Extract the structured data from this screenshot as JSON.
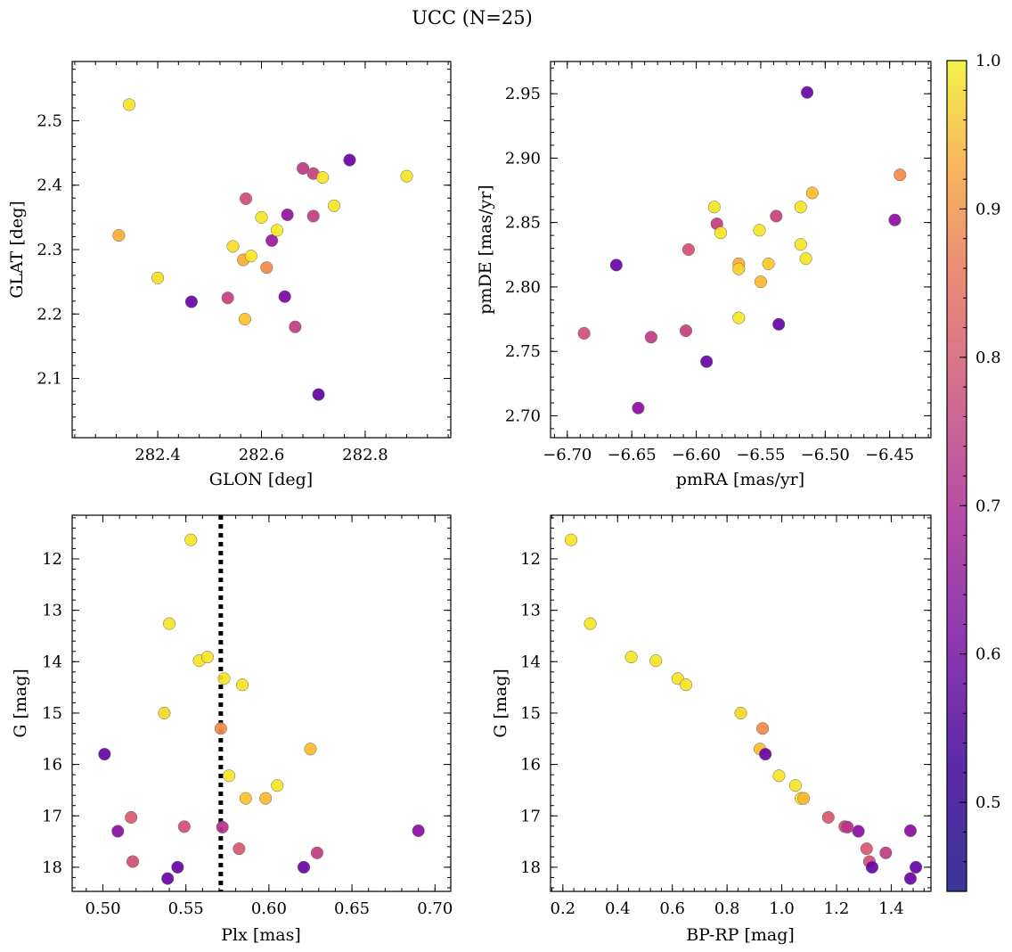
{
  "figure": {
    "title": "UCC (N=25)"
  },
  "colorbar": {
    "ticks": [
      0.5,
      0.6,
      0.7,
      0.8,
      0.9,
      1.0
    ],
    "tick_labels": [
      "0.5",
      "0.6",
      "0.7",
      "0.8",
      "0.9",
      "1.0"
    ],
    "range": [
      0.44,
      1.0
    ],
    "colormap": "plasma"
  },
  "chart_data": [
    {
      "id": "glon-glat",
      "type": "scatter",
      "xlabel": "GLON [deg]",
      "ylabel": "GLAT [deg]",
      "xlim": [
        282.235,
        282.965
      ],
      "ylim": [
        2.008,
        2.592
      ],
      "xticks": [
        282.4,
        282.6,
        282.8
      ],
      "xtick_labels": [
        "282.4",
        "282.6",
        "282.8"
      ],
      "yticks": [
        2.1,
        2.2,
        2.3,
        2.4,
        2.5
      ],
      "ytick_labels": [
        "2.1",
        "2.2",
        "2.3",
        "2.4",
        "2.5"
      ],
      "x_minor_step": 0.04,
      "y_minor_step": 0.02,
      "invert_y": false,
      "points": [
        {
          "x": 282.345,
          "y": 2.525,
          "c": 0.97
        },
        {
          "x": 282.325,
          "y": 2.322,
          "c": 0.88
        },
        {
          "x": 282.4,
          "y": 2.256,
          "c": 0.96
        },
        {
          "x": 282.465,
          "y": 2.219,
          "c": 0.49
        },
        {
          "x": 282.535,
          "y": 2.225,
          "c": 0.67
        },
        {
          "x": 282.545,
          "y": 2.305,
          "c": 0.96
        },
        {
          "x": 282.565,
          "y": 2.284,
          "c": 0.88
        },
        {
          "x": 282.568,
          "y": 2.192,
          "c": 0.92
        },
        {
          "x": 282.57,
          "y": 2.379,
          "c": 0.7
        },
        {
          "x": 282.58,
          "y": 2.29,
          "c": 0.97
        },
        {
          "x": 282.6,
          "y": 2.35,
          "c": 0.97
        },
        {
          "x": 282.61,
          "y": 2.272,
          "c": 0.82
        },
        {
          "x": 282.62,
          "y": 2.314,
          "c": 0.58
        },
        {
          "x": 282.63,
          "y": 2.33,
          "c": 0.98
        },
        {
          "x": 282.645,
          "y": 2.227,
          "c": 0.52
        },
        {
          "x": 282.65,
          "y": 2.354,
          "c": 0.56
        },
        {
          "x": 282.665,
          "y": 2.18,
          "c": 0.66
        },
        {
          "x": 282.68,
          "y": 2.426,
          "c": 0.65
        },
        {
          "x": 282.7,
          "y": 2.418,
          "c": 0.67
        },
        {
          "x": 282.7,
          "y": 2.352,
          "c": 0.66
        },
        {
          "x": 282.71,
          "y": 2.075,
          "c": 0.48
        },
        {
          "x": 282.718,
          "y": 2.412,
          "c": 0.97
        },
        {
          "x": 282.74,
          "y": 2.368,
          "c": 0.97
        },
        {
          "x": 282.77,
          "y": 2.439,
          "c": 0.49
        },
        {
          "x": 282.88,
          "y": 2.414,
          "c": 0.97
        }
      ]
    },
    {
      "id": "pmra-pmde",
      "type": "scatter",
      "xlabel": "pmRA [mas/yr]",
      "ylabel": "pmDE [mas/yr]",
      "xlim": [
        -6.713,
        -6.418
      ],
      "ylim": [
        2.683,
        2.975
      ],
      "xticks": [
        -6.7,
        -6.65,
        -6.6,
        -6.55,
        -6.5,
        -6.45
      ],
      "xtick_labels": [
        "−6.70",
        "−6.65",
        "−6.60",
        "−6.55",
        "−6.50",
        "−6.45"
      ],
      "yticks": [
        2.7,
        2.75,
        2.8,
        2.85,
        2.9,
        2.95
      ],
      "ytick_labels": [
        "2.70",
        "2.75",
        "2.80",
        "2.85",
        "2.90",
        "2.95"
      ],
      "x_minor_step": 0.01,
      "y_minor_step": 0.01,
      "invert_y": false,
      "points": [
        {
          "x": -6.514,
          "y": 2.951,
          "c": 0.49
        },
        {
          "x": -6.442,
          "y": 2.887,
          "c": 0.82
        },
        {
          "x": -6.51,
          "y": 2.873,
          "c": 0.91
        },
        {
          "x": -6.586,
          "y": 2.862,
          "c": 0.97
        },
        {
          "x": -6.519,
          "y": 2.862,
          "c": 0.97
        },
        {
          "x": -6.538,
          "y": 2.855,
          "c": 0.67
        },
        {
          "x": -6.446,
          "y": 2.852,
          "c": 0.55
        },
        {
          "x": -6.584,
          "y": 2.849,
          "c": 0.66
        },
        {
          "x": -6.581,
          "y": 2.842,
          "c": 0.97
        },
        {
          "x": -6.551,
          "y": 2.844,
          "c": 0.97
        },
        {
          "x": -6.519,
          "y": 2.833,
          "c": 0.97
        },
        {
          "x": -6.606,
          "y": 2.829,
          "c": 0.7
        },
        {
          "x": -6.515,
          "y": 2.822,
          "c": 0.97
        },
        {
          "x": -6.567,
          "y": 2.818,
          "c": 0.88
        },
        {
          "x": -6.544,
          "y": 2.818,
          "c": 0.93
        },
        {
          "x": -6.662,
          "y": 2.817,
          "c": 0.49
        },
        {
          "x": -6.567,
          "y": 2.814,
          "c": 0.94
        },
        {
          "x": -6.55,
          "y": 2.804,
          "c": 0.9
        },
        {
          "x": -6.567,
          "y": 2.776,
          "c": 0.97
        },
        {
          "x": -6.536,
          "y": 2.771,
          "c": 0.49
        },
        {
          "x": -6.687,
          "y": 2.764,
          "c": 0.7
        },
        {
          "x": -6.608,
          "y": 2.766,
          "c": 0.67
        },
        {
          "x": -6.635,
          "y": 2.761,
          "c": 0.66
        },
        {
          "x": -6.592,
          "y": 2.742,
          "c": 0.49
        },
        {
          "x": -6.645,
          "y": 2.706,
          "c": 0.55
        }
      ]
    },
    {
      "id": "plx-g",
      "type": "scatter",
      "xlabel": "Plx [mas]",
      "ylabel": "G [mag]",
      "xlim": [
        0.4815,
        0.7095
      ],
      "ylim": [
        11.15,
        18.47
      ],
      "xticks": [
        0.5,
        0.55,
        0.6,
        0.65,
        0.7
      ],
      "xtick_labels": [
        "0.50",
        "0.55",
        "0.60",
        "0.65",
        "0.70"
      ],
      "yticks": [
        12,
        13,
        14,
        15,
        16,
        17,
        18
      ],
      "ytick_labels": [
        "12",
        "13",
        "14",
        "15",
        "16",
        "17",
        "18"
      ],
      "x_minor_step": 0.01,
      "y_minor_step": 0.2,
      "invert_y": true,
      "vline": {
        "x": 0.571,
        "style": "dotted",
        "color": "#000000"
      },
      "points": [
        {
          "x": 0.553,
          "y": 11.63,
          "c": 0.97
        },
        {
          "x": 0.54,
          "y": 13.26,
          "c": 0.97
        },
        {
          "x": 0.558,
          "y": 13.98,
          "c": 0.97
        },
        {
          "x": 0.563,
          "y": 13.91,
          "c": 0.97
        },
        {
          "x": 0.573,
          "y": 14.33,
          "c": 0.97
        },
        {
          "x": 0.584,
          "y": 14.45,
          "c": 0.97
        },
        {
          "x": 0.537,
          "y": 15.0,
          "c": 0.95
        },
        {
          "x": 0.571,
          "y": 15.3,
          "c": 0.82
        },
        {
          "x": 0.625,
          "y": 15.7,
          "c": 0.91
        },
        {
          "x": 0.501,
          "y": 15.8,
          "c": 0.49
        },
        {
          "x": 0.576,
          "y": 16.22,
          "c": 0.97
        },
        {
          "x": 0.605,
          "y": 16.41,
          "c": 0.97
        },
        {
          "x": 0.586,
          "y": 16.66,
          "c": 0.92
        },
        {
          "x": 0.598,
          "y": 16.66,
          "c": 0.9
        },
        {
          "x": 0.517,
          "y": 17.03,
          "c": 0.72
        },
        {
          "x": 0.549,
          "y": 17.21,
          "c": 0.7
        },
        {
          "x": 0.572,
          "y": 17.22,
          "c": 0.64
        },
        {
          "x": 0.509,
          "y": 17.3,
          "c": 0.55
        },
        {
          "x": 0.69,
          "y": 17.29,
          "c": 0.55
        },
        {
          "x": 0.582,
          "y": 17.64,
          "c": 0.72
        },
        {
          "x": 0.629,
          "y": 17.72,
          "c": 0.66
        },
        {
          "x": 0.518,
          "y": 17.89,
          "c": 0.7
        },
        {
          "x": 0.545,
          "y": 18.0,
          "c": 0.49
        },
        {
          "x": 0.621,
          "y": 18.0,
          "c": 0.49
        },
        {
          "x": 0.539,
          "y": 18.22,
          "c": 0.49
        }
      ]
    },
    {
      "id": "bprp-g",
      "type": "scatter",
      "xlabel": "BP-RP [mag]",
      "ylabel": "G [mag]",
      "xlim": [
        0.155,
        1.545
      ],
      "ylim": [
        11.15,
        18.47
      ],
      "xticks": [
        0.2,
        0.4,
        0.6,
        0.8,
        1.0,
        1.2,
        1.4
      ],
      "xtick_labels": [
        "0.2",
        "0.4",
        "0.6",
        "0.8",
        "1.0",
        "1.2",
        "1.4"
      ],
      "yticks": [
        12,
        13,
        14,
        15,
        16,
        17,
        18
      ],
      "ytick_labels": [
        "12",
        "13",
        "14",
        "15",
        "16",
        "17",
        "18"
      ],
      "x_minor_step": 0.04,
      "y_minor_step": 0.2,
      "invert_y": true,
      "points": [
        {
          "x": 0.23,
          "y": 11.63,
          "c": 0.97
        },
        {
          "x": 0.3,
          "y": 13.26,
          "c": 0.97
        },
        {
          "x": 0.45,
          "y": 13.91,
          "c": 0.97
        },
        {
          "x": 0.54,
          "y": 13.98,
          "c": 0.97
        },
        {
          "x": 0.62,
          "y": 14.33,
          "c": 0.97
        },
        {
          "x": 0.65,
          "y": 14.45,
          "c": 0.97
        },
        {
          "x": 0.85,
          "y": 15.0,
          "c": 0.95
        },
        {
          "x": 0.93,
          "y": 15.3,
          "c": 0.82
        },
        {
          "x": 0.92,
          "y": 15.7,
          "c": 0.91
        },
        {
          "x": 0.94,
          "y": 15.8,
          "c": 0.49
        },
        {
          "x": 0.99,
          "y": 16.22,
          "c": 0.97
        },
        {
          "x": 1.05,
          "y": 16.41,
          "c": 0.97
        },
        {
          "x": 1.07,
          "y": 16.66,
          "c": 0.97
        },
        {
          "x": 1.08,
          "y": 16.66,
          "c": 0.9
        },
        {
          "x": 1.17,
          "y": 17.03,
          "c": 0.72
        },
        {
          "x": 1.23,
          "y": 17.21,
          "c": 0.7
        },
        {
          "x": 1.24,
          "y": 17.22,
          "c": 0.64
        },
        {
          "x": 1.28,
          "y": 17.3,
          "c": 0.55
        },
        {
          "x": 1.47,
          "y": 17.29,
          "c": 0.55
        },
        {
          "x": 1.31,
          "y": 17.64,
          "c": 0.72
        },
        {
          "x": 1.38,
          "y": 17.72,
          "c": 0.66
        },
        {
          "x": 1.32,
          "y": 17.89,
          "c": 0.7
        },
        {
          "x": 1.33,
          "y": 18.0,
          "c": 0.49
        },
        {
          "x": 1.49,
          "y": 18.0,
          "c": 0.49
        },
        {
          "x": 1.47,
          "y": 18.22,
          "c": 0.49
        }
      ]
    }
  ]
}
